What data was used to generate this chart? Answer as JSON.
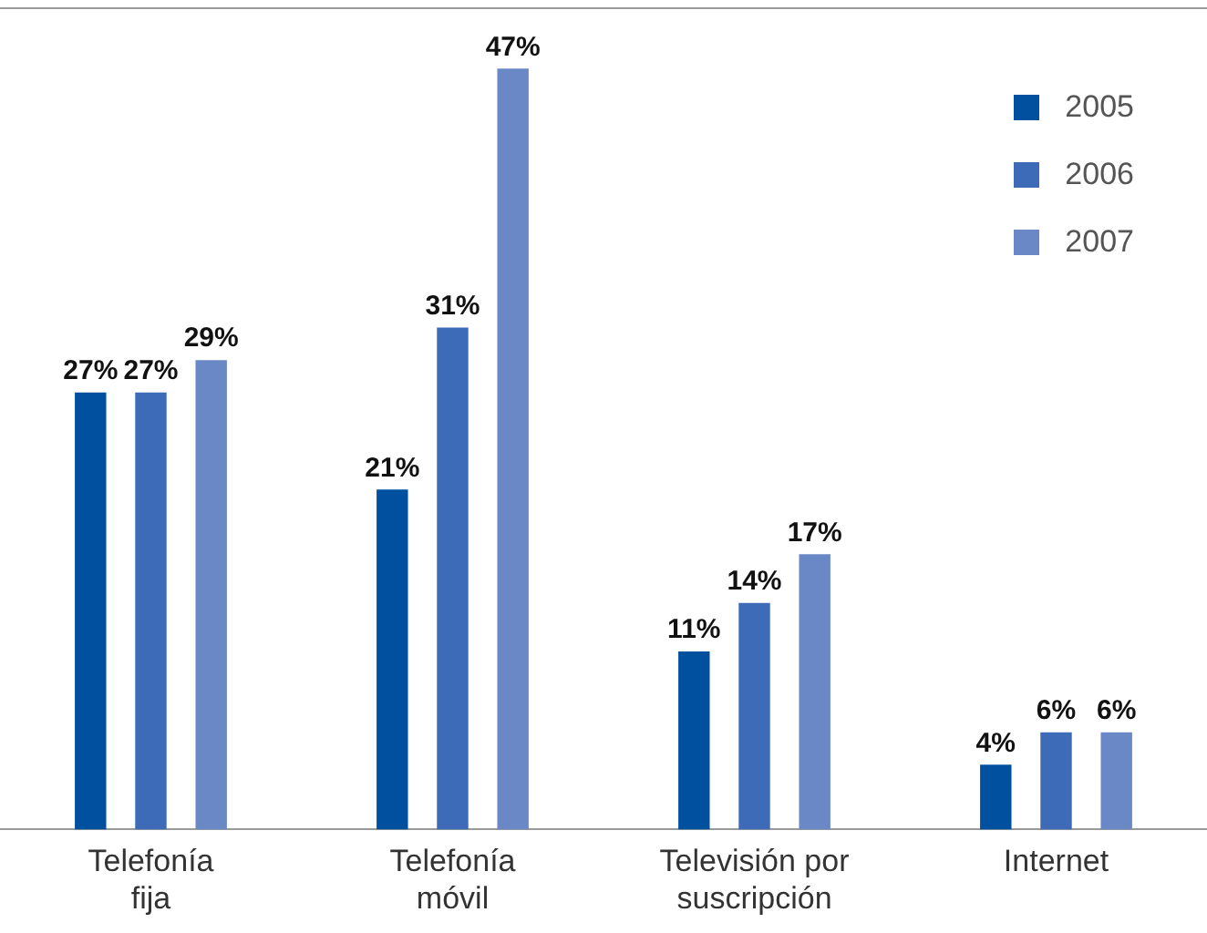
{
  "chart_data": {
    "type": "bar",
    "categories": [
      "Telefonía fija",
      "Telefonía móvil",
      "Televisión por suscripción",
      "Internet"
    ],
    "series": [
      {
        "name": "2005",
        "color": "#0050a0",
        "values": [
          27,
          21,
          11,
          4
        ],
        "value_labels": [
          "27%",
          "21%",
          "11%",
          "4%"
        ]
      },
      {
        "name": "2006",
        "color": "#3d6bb8",
        "values": [
          27,
          31,
          14,
          6
        ],
        "value_labels": [
          "27%",
          "31%",
          "14%",
          "6%"
        ]
      },
      {
        "name": "2007",
        "color": "#6b88c6",
        "values": [
          29,
          47,
          17,
          6
        ],
        "value_labels": [
          "29%",
          "47%",
          "17%",
          "6%"
        ]
      }
    ],
    "legend": "top right",
    "grid": false
  }
}
